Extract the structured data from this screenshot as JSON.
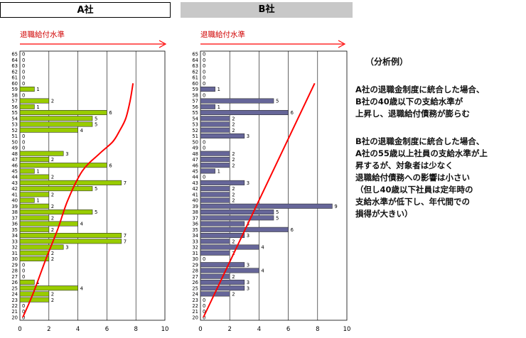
{
  "headers": {
    "a": "A社",
    "b": "B社"
  },
  "legend_label": "退職給付水準",
  "notes": {
    "title": "（分析例）",
    "p1": [
      "A社の退職金制度に統合した場合、",
      "B社の40歳以下の支給水準が",
      "上昇し、退職給付債務が膨らむ"
    ],
    "p2": [
      "B社の退職金制度に統合した場合、",
      "A社の55歳以上社員の支給水準が上",
      "昇するが、対象者は少なく",
      "退職給付債務への影響は小さい",
      "（但し40歳以下社員は定年時の",
      "支給水準が低下し、年代間での",
      "損得が大きい）"
    ]
  },
  "colors": {
    "a_bar": "#99cc00",
    "b_bar": "#666699",
    "curve": "#ff0000",
    "grid": "#000000"
  },
  "chart_data": [
    {
      "type": "bar",
      "orientation": "horizontal",
      "title": "A社",
      "categories": [
        20,
        21,
        22,
        23,
        24,
        25,
        26,
        27,
        28,
        29,
        30,
        31,
        32,
        33,
        34,
        35,
        36,
        37,
        38,
        39,
        40,
        41,
        42,
        43,
        44,
        45,
        46,
        47,
        48,
        49,
        50,
        51,
        52,
        53,
        54,
        55,
        56,
        57,
        58,
        59,
        60,
        61,
        62,
        63,
        64,
        65
      ],
      "values": [
        0,
        0,
        0,
        2,
        2,
        4,
        1,
        0,
        0,
        0,
        2,
        2,
        3,
        7,
        7,
        2,
        4,
        2,
        5,
        2,
        1,
        2,
        5,
        7,
        2,
        1,
        6,
        2,
        3,
        0,
        0,
        0,
        4,
        5,
        5,
        6,
        1,
        2,
        0,
        1,
        0,
        0,
        0,
        0,
        0,
        0
      ],
      "xlim": [
        0,
        10
      ],
      "xticks": [
        0,
        2,
        4,
        6,
        8,
        10
      ],
      "curve": {
        "label": "退職給付水準",
        "x": [
          0.2,
          0.9,
          1.8,
          2.6,
          3.3,
          4.3,
          5.5,
          6.4,
          6.9,
          7.3,
          7.6,
          7.8
        ],
        "y": [
          20,
          24,
          30,
          35,
          40,
          45,
          48,
          50,
          52,
          54,
          57,
          60
        ]
      }
    },
    {
      "type": "bar",
      "orientation": "horizontal",
      "title": "B社",
      "categories": [
        20,
        21,
        22,
        23,
        24,
        25,
        26,
        27,
        28,
        29,
        30,
        31,
        32,
        33,
        34,
        35,
        36,
        37,
        38,
        39,
        40,
        41,
        42,
        43,
        44,
        45,
        46,
        47,
        48,
        49,
        50,
        51,
        52,
        53,
        54,
        55,
        56,
        57,
        58,
        59,
        60,
        61,
        62,
        63,
        64,
        65
      ],
      "values": [
        0,
        0,
        0,
        0,
        2,
        3,
        3,
        2,
        4,
        3,
        0,
        2,
        4,
        2,
        3,
        6,
        3,
        5,
        5,
        9,
        2,
        2,
        2,
        3,
        0,
        1,
        2,
        2,
        2,
        0,
        0,
        3,
        2,
        2,
        2,
        6,
        1,
        5,
        0,
        1,
        0,
        0,
        0,
        0,
        0,
        0
      ],
      "xlim": [
        0,
        10
      ],
      "xticks": [
        0,
        2,
        4,
        6,
        8,
        10
      ],
      "curve": {
        "label": "退職給付水準",
        "x": [
          0.2,
          7.8
        ],
        "y": [
          20,
          60
        ]
      }
    }
  ]
}
